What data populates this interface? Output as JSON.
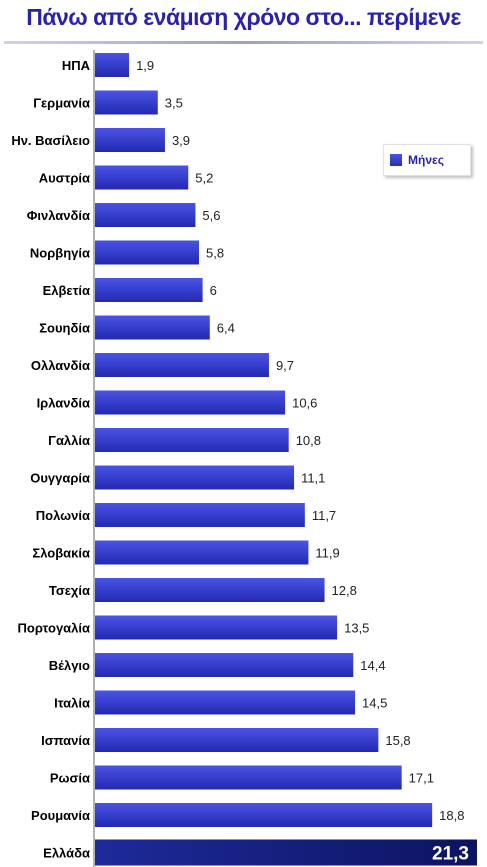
{
  "chart_data": {
    "type": "bar",
    "orientation": "horizontal",
    "title": "Πάνω από ενάμιση χρόνο στο... περίμενε",
    "categories": [
      "ΗΠΑ",
      "Γερμανία",
      "Ην. Βασίλειο",
      "Αυστρία",
      "Φινλανδία",
      "Νορβηγία",
      "Ελβετία",
      "Σουηδία",
      "Ολλανδία",
      "Ιρλανδία",
      "Γαλλία",
      "Ουγγαρία",
      "Πολωνία",
      "Σλοβακία",
      "Τσεχία",
      "Πορτογαλία",
      "Βέλγιο",
      "Ιταλία",
      "Ισπανία",
      "Ρωσία",
      "Ρουμανία",
      "Ελλάδα"
    ],
    "value_labels": [
      "1,9",
      "3,5",
      "3,9",
      "5,2",
      "5,6",
      "5,8",
      "6",
      "6,4",
      "9,7",
      "10,6",
      "10,8",
      "11,1",
      "11,7",
      "11,9",
      "12,8",
      "13,5",
      "14,4",
      "14,5",
      "15,8",
      "17,1",
      "18,8",
      "21,3"
    ],
    "series": [
      {
        "name": "Μήνες",
        "values": [
          1.9,
          3.5,
          3.9,
          5.2,
          5.6,
          5.8,
          6,
          6.4,
          9.7,
          10.6,
          10.8,
          11.1,
          11.7,
          11.9,
          12.8,
          13.5,
          14.4,
          14.5,
          15.8,
          17.1,
          18.8,
          21.3
        ]
      }
    ],
    "highlight_index": 21,
    "legend_position": "top-right",
    "grid": false,
    "xlim": [
      0,
      21.3
    ],
    "colors": {
      "bar": "#2b33c8",
      "bar_light": "#4b53e6",
      "bar_highlight": "#101a78",
      "title": "#2a22a8"
    }
  }
}
